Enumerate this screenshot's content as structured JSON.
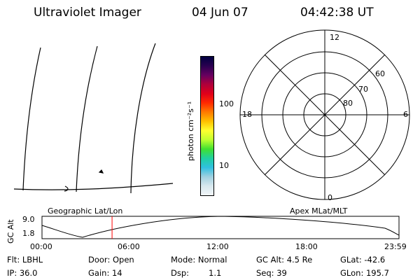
{
  "header": {
    "instrument": "Ultraviolet Imager",
    "date": "04 Jun 07",
    "time": "04:42:38 UT"
  },
  "colorbar": {
    "label": "photon cm⁻²s⁻¹",
    "ticks": [
      "100",
      "10"
    ],
    "colors": [
      "#000040",
      "#2a0050",
      "#660060",
      "#b0003a",
      "#e0001a",
      "#ff2a00",
      "#ff7a00",
      "#ffc000",
      "#ffff30",
      "#c0ff30",
      "#40e030",
      "#20d0a0",
      "#30c0e0",
      "#a0d0e0",
      "#d8e8ee",
      "#f2f6f8"
    ]
  },
  "polar_plot": {
    "hour_labels": [
      "12",
      "18",
      "6",
      "0"
    ],
    "lat_labels": [
      "60",
      "70",
      "80"
    ]
  },
  "timeline": {
    "left_label": "Geographic Lat/Lon",
    "right_label": "Apex MLat/MLT",
    "axis_title": "GC Alt",
    "y_ticks": [
      "9.0",
      "1.8"
    ],
    "x_ticks": [
      "00:00",
      "06:00",
      "12:00",
      "18:00",
      "23:59"
    ],
    "marker_time_hours": 4.71,
    "marker_color": "#ff0000"
  },
  "info": {
    "filter": "Flt: LBHL",
    "door": "Door: Open",
    "mode": "Mode: Normal",
    "gc_alt": "GC Alt: 4.5 Re",
    "glat": "GLat: -42.6",
    "ip": "IP: 36.0",
    "gain": "Gain: 14",
    "dsp_label": "Dsp:",
    "dsp_value": "1.1",
    "seq": "Seq: 39",
    "glon": "GLon: 195.7"
  }
}
